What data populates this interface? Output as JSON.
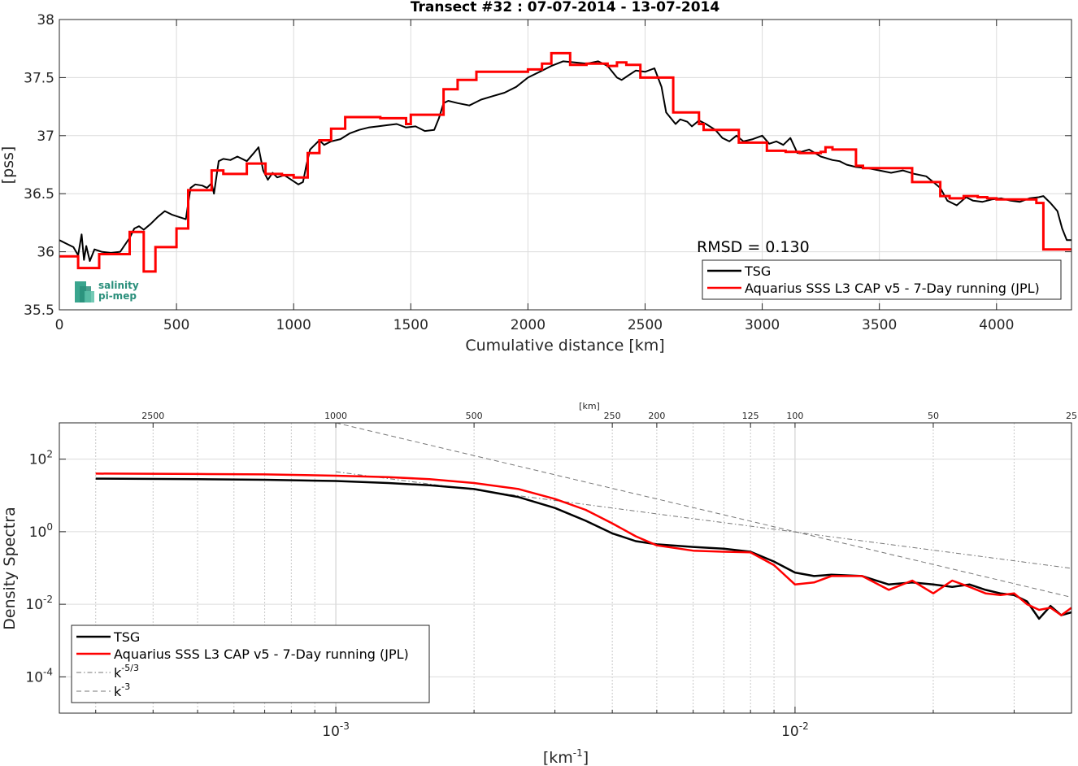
{
  "chart_data": [
    {
      "type": "line",
      "title": "Transect #32 : 07-07-2014 - 13-07-2014",
      "xlabel": "Cumulative distance [km]",
      "ylabel": "[pss]",
      "xlim": [
        0,
        4320
      ],
      "ylim": [
        35.5,
        38
      ],
      "xticks": [
        0,
        500,
        1000,
        1500,
        2000,
        2500,
        3000,
        3500,
        4000
      ],
      "yticks": [
        35.5,
        36,
        36.5,
        37,
        37.5,
        38
      ],
      "xtick_labels": [
        "0",
        "500",
        "1000",
        "1500",
        "2000",
        "2500",
        "3000",
        "3500",
        "4000"
      ],
      "ytick_labels": [
        "35.5",
        "36",
        "36.5",
        "37",
        "37.5",
        "38"
      ],
      "grid": true,
      "legend_position": "bottom-right",
      "annotation": "RMSD = 0.130",
      "logo": {
        "line1": "salinity",
        "line2": "pi-mep"
      },
      "series": [
        {
          "name": "TSG",
          "color": "#000000",
          "x": [
            0,
            30,
            60,
            80,
            95,
            105,
            115,
            130,
            150,
            180,
            220,
            260,
            300,
            320,
            340,
            360,
            390,
            420,
            450,
            480,
            510,
            540,
            560,
            580,
            610,
            630,
            650,
            660,
            680,
            700,
            730,
            760,
            800,
            830,
            850,
            870,
            890,
            910,
            930,
            960,
            990,
            1020,
            1040,
            1055,
            1070,
            1090,
            1110,
            1130,
            1160,
            1200,
            1240,
            1280,
            1320,
            1360,
            1400,
            1440,
            1480,
            1520,
            1560,
            1600,
            1620,
            1640,
            1660,
            1700,
            1750,
            1800,
            1850,
            1900,
            1950,
            2000,
            2050,
            2100,
            2150,
            2200,
            2250,
            2300,
            2340,
            2380,
            2400,
            2430,
            2460,
            2500,
            2540,
            2570,
            2590,
            2610,
            2630,
            2650,
            2680,
            2700,
            2730,
            2760,
            2800,
            2830,
            2860,
            2890,
            2920,
            2960,
            3000,
            3030,
            3060,
            3090,
            3120,
            3150,
            3200,
            3250,
            3300,
            3330,
            3360,
            3400,
            3450,
            3500,
            3550,
            3600,
            3650,
            3700,
            3730,
            3760,
            3790,
            3830,
            3870,
            3900,
            3940,
            3980,
            4020,
            4060,
            4100,
            4140,
            4180,
            4200,
            4230,
            4260,
            4280,
            4300,
            4320
          ],
          "y": [
            36.1,
            36.07,
            36.04,
            35.97,
            36.15,
            35.93,
            36.05,
            35.92,
            36.02,
            36.0,
            35.99,
            36.0,
            36.12,
            36.2,
            36.22,
            36.19,
            36.24,
            36.3,
            36.35,
            36.32,
            36.3,
            36.28,
            36.55,
            36.58,
            36.57,
            36.55,
            36.59,
            36.5,
            36.78,
            36.8,
            36.79,
            36.82,
            36.78,
            36.85,
            36.9,
            36.7,
            36.62,
            36.68,
            36.64,
            36.66,
            36.62,
            36.58,
            36.6,
            36.75,
            36.88,
            36.92,
            36.96,
            36.92,
            36.95,
            36.97,
            37.02,
            37.05,
            37.07,
            37.08,
            37.09,
            37.1,
            37.07,
            37.08,
            37.04,
            37.05,
            37.15,
            37.28,
            37.3,
            37.28,
            37.26,
            37.31,
            37.34,
            37.37,
            37.42,
            37.5,
            37.55,
            37.6,
            37.64,
            37.63,
            37.62,
            37.64,
            37.6,
            37.5,
            37.48,
            37.52,
            37.56,
            37.55,
            37.58,
            37.42,
            37.2,
            37.15,
            37.1,
            37.14,
            37.12,
            37.08,
            37.13,
            37.1,
            37.05,
            36.98,
            36.95,
            37.0,
            36.95,
            36.97,
            37.0,
            36.93,
            36.95,
            36.92,
            36.98,
            36.85,
            36.88,
            36.82,
            36.79,
            36.78,
            36.75,
            36.73,
            36.72,
            36.7,
            36.68,
            36.7,
            36.67,
            36.65,
            36.6,
            36.55,
            36.44,
            36.4,
            36.47,
            36.44,
            36.43,
            36.45,
            36.46,
            36.44,
            36.43,
            36.46,
            36.47,
            36.48,
            36.42,
            36.35,
            36.2,
            36.1,
            36.1
          ]
        },
        {
          "name": "Aquarius SSS L3 CAP v5 - 7-Day running (JPL)",
          "color": "#ff0000",
          "x": [
            0,
            80,
            170,
            300,
            360,
            410,
            500,
            550,
            650,
            700,
            800,
            880,
            950,
            1000,
            1060,
            1110,
            1160,
            1220,
            1300,
            1370,
            1480,
            1500,
            1640,
            1700,
            1780,
            1840,
            1920,
            2000,
            2060,
            2100,
            2180,
            2250,
            2300,
            2340,
            2380,
            2420,
            2480,
            2530,
            2620,
            2660,
            2730,
            2750,
            2820,
            2900,
            2940,
            2980,
            3020,
            3100,
            3120,
            3160,
            3200,
            3250,
            3270,
            3300,
            3400,
            3430,
            3480,
            3560,
            3640,
            3720,
            3760,
            3800,
            3860,
            3920,
            3960,
            4000,
            4100,
            4170,
            4200,
            4320
          ],
          "y": [
            35.96,
            35.86,
            35.98,
            36.17,
            35.83,
            36.04,
            36.2,
            36.53,
            36.7,
            36.67,
            36.76,
            36.67,
            36.66,
            36.64,
            36.85,
            36.96,
            37.06,
            37.16,
            37.16,
            37.15,
            37.1,
            37.18,
            37.4,
            37.48,
            37.55,
            37.55,
            37.55,
            37.57,
            37.62,
            37.71,
            37.61,
            37.62,
            37.62,
            37.6,
            37.63,
            37.61,
            37.5,
            37.5,
            37.2,
            37.2,
            37.1,
            37.05,
            37.05,
            36.94,
            36.94,
            36.94,
            36.87,
            36.86,
            36.86,
            36.85,
            36.85,
            36.86,
            36.9,
            36.88,
            36.74,
            36.72,
            36.72,
            36.72,
            36.6,
            36.6,
            36.48,
            36.46,
            36.48,
            36.47,
            36.46,
            36.45,
            36.45,
            36.42,
            36.02,
            36.02
          ]
        }
      ]
    },
    {
      "type": "line",
      "xlabel_base": "[km",
      "xlabel_exp": "-1",
      "xlabel_end": "]",
      "ylabel": "Density Spectra",
      "x_scale": "log",
      "y_scale": "log",
      "xlim": [
        0.00025,
        0.04
      ],
      "ylim": [
        1e-05,
        1000
      ],
      "xtick_values": [
        0.001,
        0.01
      ],
      "xtick_base": [
        "10",
        "10"
      ],
      "xtick_exp": [
        "-3",
        "-2"
      ],
      "ytick_values": [
        0.0001,
        0.01,
        1,
        100
      ],
      "ytick_base": [
        "10",
        "10",
        "10",
        "10"
      ],
      "ytick_exp": [
        "-4",
        "-2",
        "0",
        "2"
      ],
      "top_axis_label": "[km]",
      "top_axis_values": [
        2500,
        1000,
        500,
        250,
        200,
        125,
        100,
        50,
        25
      ],
      "top_axis_labels": [
        "2500",
        "1000",
        "500",
        "250",
        "200",
        "125",
        "100",
        "50",
        "25"
      ],
      "grid": true,
      "legend_position": "bottom-left",
      "series": [
        {
          "name": "TSG",
          "color": "#000000",
          "style": "solid",
          "x": [
            0.0003,
            0.0005,
            0.0007,
            0.001,
            0.0013,
            0.0016,
            0.002,
            0.0025,
            0.003,
            0.0035,
            0.004,
            0.0045,
            0.005,
            0.006,
            0.007,
            0.008,
            0.009,
            0.01,
            0.011,
            0.012,
            0.014,
            0.016,
            0.018,
            0.02,
            0.022,
            0.024,
            0.026,
            0.028,
            0.03,
            0.032,
            0.034,
            0.036,
            0.038,
            0.04
          ],
          "y": [
            29,
            28,
            27,
            25,
            22,
            19,
            15,
            9,
            4.5,
            2.0,
            0.9,
            0.55,
            0.45,
            0.38,
            0.34,
            0.28,
            0.15,
            0.075,
            0.06,
            0.065,
            0.06,
            0.035,
            0.04,
            0.035,
            0.03,
            0.035,
            0.025,
            0.02,
            0.018,
            0.012,
            0.004,
            0.009,
            0.005,
            0.006
          ]
        },
        {
          "name": "Aquarius SSS L3 CAP v5 - 7-Day running (JPL)",
          "color": "#ff0000",
          "style": "solid",
          "x": [
            0.0003,
            0.0005,
            0.0007,
            0.001,
            0.0013,
            0.0016,
            0.002,
            0.0025,
            0.003,
            0.0035,
            0.004,
            0.0045,
            0.005,
            0.006,
            0.007,
            0.008,
            0.009,
            0.01,
            0.011,
            0.012,
            0.014,
            0.016,
            0.018,
            0.02,
            0.022,
            0.024,
            0.026,
            0.028,
            0.03,
            0.032,
            0.034,
            0.036,
            0.038,
            0.04
          ],
          "y": [
            40,
            39,
            38,
            35,
            32,
            28,
            22,
            15,
            8,
            4.0,
            1.7,
            0.75,
            0.42,
            0.3,
            0.28,
            0.27,
            0.12,
            0.035,
            0.04,
            0.06,
            0.06,
            0.025,
            0.045,
            0.02,
            0.045,
            0.03,
            0.02,
            0.018,
            0.02,
            0.01,
            0.007,
            0.008,
            0.005,
            0.008
          ]
        },
        {
          "name": "k^-5/3",
          "label_base": "k",
          "label_exp": "-5/3",
          "color": "#777777",
          "style": "dashdot",
          "x": [
            0.001,
            0.04
          ],
          "y": [
            45,
            0.098
          ]
        },
        {
          "name": "k^-3",
          "label_base": "k",
          "label_exp": "-3",
          "color": "#777777",
          "style": "dashed",
          "x": [
            0.001,
            0.04
          ],
          "y": [
            1000,
            0.0156
          ]
        }
      ]
    }
  ]
}
